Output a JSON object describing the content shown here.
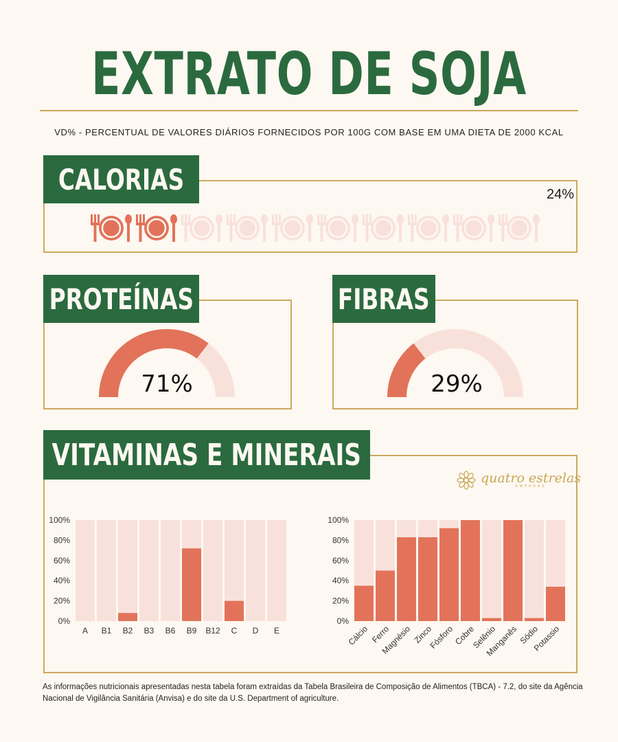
{
  "title": "EXTRATO DE SOJA",
  "subtitle": "VD% - PERCENTUAL DE VALORES DIÁRIOS FORNECIDOS POR 100G COM BASE EM UMA DIETA DE 2000 KCAL",
  "sections": {
    "calorias": {
      "label": "CALORIAS",
      "value_text": "24%",
      "value": 24
    },
    "proteinas": {
      "label": "PROTEÍNAS",
      "value_text": "71%",
      "value": 71
    },
    "fibras": {
      "label": "FIBRAS",
      "value_text": "29%",
      "value": 29
    },
    "vitaminas": {
      "label": "VITAMINAS E MINERAIS"
    }
  },
  "logo": {
    "name": "quatro estrelas",
    "sub": "EMPADAS"
  },
  "footer": "As informações nutricionais apresentadas nesta tabela foram extraídas da Tabela Brasileira de Composição de Alimentos (TBCA) - 7.2, do site da Agência Nacional de Vigilância Sanitária (Anvisa) e do site da U.S. Department of agriculture.",
  "colors": {
    "green": "#2b6a3f",
    "gold": "#cda95e",
    "coral": "#e2735a",
    "pale": "#f9e1db",
    "background": "#fdf8f1"
  },
  "chart_data": [
    {
      "type": "bar",
      "title": "Vitaminas",
      "categories": [
        "A",
        "B1",
        "B2",
        "B3",
        "B6",
        "B9",
        "B12",
        "C",
        "D",
        "E"
      ],
      "values": [
        0,
        0,
        8,
        0,
        0,
        72,
        0,
        20,
        0,
        0
      ],
      "yticks": [
        "0%",
        "20%",
        "40%",
        "60%",
        "80%",
        "100%"
      ],
      "ylim": [
        0,
        100
      ]
    },
    {
      "type": "bar",
      "title": "Minerais",
      "categories": [
        "Cálcio",
        "Ferro",
        "Magnésio",
        "Zinco",
        "Fósforo",
        "Cobre",
        "Selênio",
        "Manganês",
        "Sódio",
        "Potassio"
      ],
      "values": [
        35,
        50,
        83,
        83,
        92,
        100,
        3,
        100,
        3,
        34
      ],
      "yticks": [
        "0%",
        "20%",
        "40%",
        "60%",
        "80%",
        "100%"
      ],
      "ylim": [
        0,
        100
      ]
    }
  ]
}
